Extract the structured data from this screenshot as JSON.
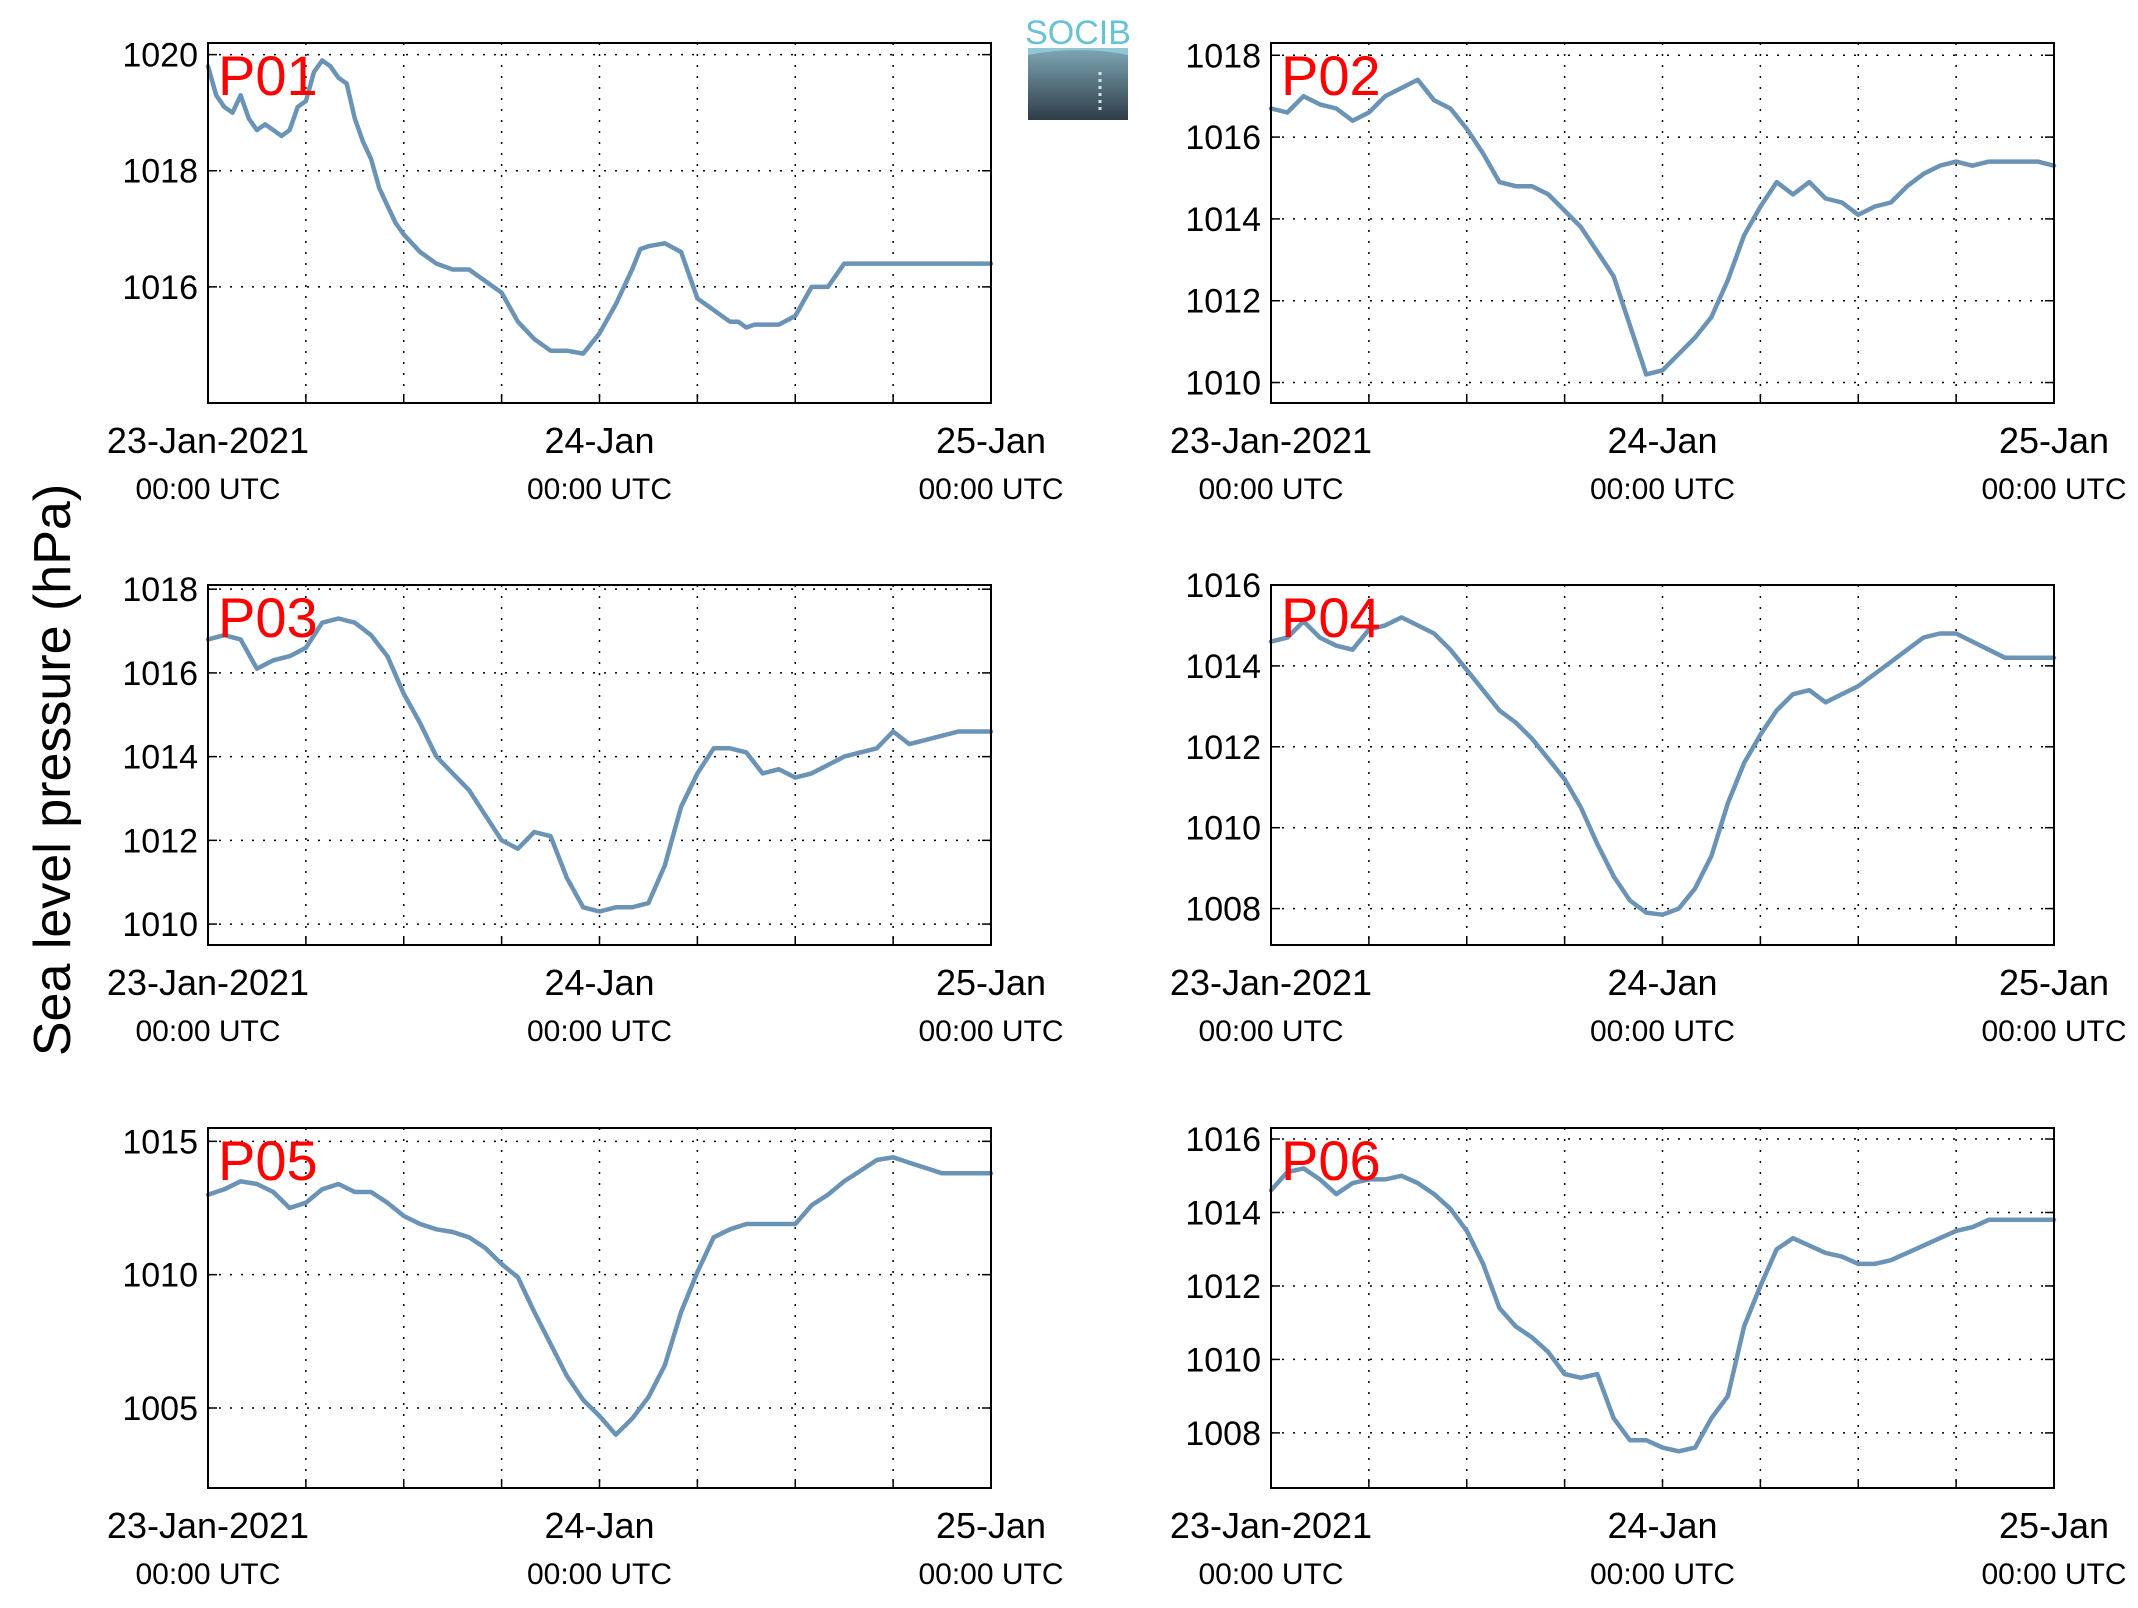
{
  "figure": {
    "ylabel": "Sea level pressure (hPa)",
    "logo_text": "SOCIB",
    "line_color": "#6a93b6",
    "panel_label_color": "#ff0000",
    "grid": "dotted"
  },
  "chart_data": [
    {
      "type": "line",
      "panel_label": "P01",
      "x_ticks": [
        {
          "x": 0,
          "line1": "23-Jan-2021",
          "line2": "00:00 UTC"
        },
        {
          "x": 24,
          "line1": "24-Jan",
          "line2": "00:00 UTC"
        },
        {
          "x": 48,
          "line1": "25-Jan",
          "line2": "00:00 UTC"
        }
      ],
      "xlim": [
        0,
        48
      ],
      "ylim": [
        1014,
        1020.2
      ],
      "yticks": [
        1016,
        1018,
        1020
      ],
      "x": [
        0,
        0.5,
        1,
        1.5,
        2,
        2.5,
        3,
        3.5,
        4,
        4.5,
        5,
        5.5,
        6,
        6.5,
        7,
        7.5,
        8,
        8.5,
        9,
        9.5,
        10,
        10.5,
        11,
        11.5,
        12,
        13,
        14,
        15,
        16,
        17,
        18,
        19,
        20,
        21,
        22,
        23,
        24,
        25,
        26,
        26.5,
        27,
        28,
        29,
        30,
        31,
        31.5,
        32,
        32.5,
        33,
        33.5,
        34,
        35,
        36,
        37,
        38,
        39,
        40,
        41,
        42,
        43,
        44,
        45,
        46,
        47,
        48
      ],
      "values": [
        1019.8,
        1019.3,
        1019.1,
        1019.0,
        1019.3,
        1018.9,
        1018.7,
        1018.8,
        1018.7,
        1018.6,
        1018.7,
        1019.1,
        1019.2,
        1019.7,
        1019.9,
        1019.8,
        1019.6,
        1019.5,
        1018.9,
        1018.5,
        1018.2,
        1017.7,
        1017.4,
        1017.1,
        1016.9,
        1016.6,
        1016.4,
        1016.3,
        1016.3,
        1016.1,
        1015.9,
        1015.4,
        1015.1,
        1014.9,
        1014.9,
        1014.85,
        1015.2,
        1015.7,
        1016.3,
        1016.65,
        1016.7,
        1016.75,
        1016.6,
        1015.8,
        1015.6,
        1015.5,
        1015.4,
        1015.4,
        1015.3,
        1015.35,
        1015.35,
        1015.35,
        1015.5,
        1016.0,
        1016.0,
        1016.4,
        1016.4,
        1016.4,
        1016.4,
        1016.4,
        1016.4,
        1016.4,
        1016.4,
        1016.4,
        1016.4
      ]
    },
    {
      "type": "line",
      "panel_label": "P02",
      "x_ticks": [
        {
          "x": 0,
          "line1": "23-Jan-2021",
          "line2": "00:00 UTC"
        },
        {
          "x": 24,
          "line1": "24-Jan",
          "line2": "00:00 UTC"
        },
        {
          "x": 48,
          "line1": "25-Jan",
          "line2": "00:00 UTC"
        }
      ],
      "xlim": [
        0,
        48
      ],
      "ylim": [
        1009.5,
        1018.3
      ],
      "yticks": [
        1010,
        1012,
        1014,
        1016,
        1018
      ],
      "x": [
        0,
        1,
        2,
        3,
        4,
        5,
        6,
        7,
        8,
        9,
        10,
        11,
        12,
        13,
        14,
        15,
        16,
        17,
        18,
        19,
        20,
        21,
        22,
        23,
        24,
        25,
        26,
        27,
        28,
        29,
        30,
        31,
        32,
        33,
        34,
        35,
        36,
        37,
        38,
        39,
        40,
        41,
        42,
        43,
        44,
        45,
        46,
        47,
        48
      ],
      "values": [
        1016.7,
        1016.6,
        1017.0,
        1016.8,
        1016.7,
        1016.4,
        1016.6,
        1017.0,
        1017.2,
        1017.4,
        1016.9,
        1016.7,
        1016.2,
        1015.6,
        1014.9,
        1014.8,
        1014.8,
        1014.6,
        1014.2,
        1013.8,
        1013.2,
        1012.6,
        1011.4,
        1010.2,
        1010.3,
        1010.7,
        1011.1,
        1011.6,
        1012.5,
        1013.6,
        1014.3,
        1014.9,
        1014.6,
        1014.9,
        1014.5,
        1014.4,
        1014.1,
        1014.3,
        1014.4,
        1014.8,
        1015.1,
        1015.3,
        1015.4,
        1015.3,
        1015.4,
        1015.4,
        1015.4,
        1015.4,
        1015.3
      ]
    },
    {
      "type": "line",
      "panel_label": "P03",
      "x_ticks": [
        {
          "x": 0,
          "line1": "23-Jan-2021",
          "line2": "00:00 UTC"
        },
        {
          "x": 24,
          "line1": "24-Jan",
          "line2": "00:00 UTC"
        },
        {
          "x": 48,
          "line1": "25-Jan",
          "line2": "00:00 UTC"
        }
      ],
      "xlim": [
        0,
        48
      ],
      "ylim": [
        1009.5,
        1018.1
      ],
      "yticks": [
        1010,
        1012,
        1014,
        1016,
        1018
      ],
      "x": [
        0,
        1,
        2,
        3,
        4,
        5,
        6,
        7,
        8,
        9,
        10,
        11,
        12,
        13,
        14,
        15,
        16,
        17,
        18,
        19,
        20,
        21,
        22,
        23,
        24,
        25,
        26,
        27,
        28,
        29,
        30,
        31,
        32,
        33,
        34,
        35,
        36,
        37,
        38,
        39,
        40,
        41,
        42,
        43,
        44,
        45,
        46,
        47,
        48
      ],
      "values": [
        1016.8,
        1016.9,
        1016.8,
        1016.1,
        1016.3,
        1016.4,
        1016.6,
        1017.2,
        1017.3,
        1017.2,
        1016.9,
        1016.4,
        1015.5,
        1014.8,
        1014.0,
        1013.6,
        1013.2,
        1012.6,
        1012.0,
        1011.8,
        1012.2,
        1012.1,
        1011.1,
        1010.4,
        1010.3,
        1010.4,
        1010.4,
        1010.5,
        1011.4,
        1012.8,
        1013.6,
        1014.2,
        1014.2,
        1014.1,
        1013.6,
        1013.7,
        1013.5,
        1013.6,
        1013.8,
        1014.0,
        1014.1,
        1014.2,
        1014.6,
        1014.3,
        1014.4,
        1014.5,
        1014.6,
        1014.6,
        1014.6
      ]
    },
    {
      "type": "line",
      "panel_label": "P04",
      "x_ticks": [
        {
          "x": 0,
          "line1": "23-Jan-2021",
          "line2": "00:00 UTC"
        },
        {
          "x": 24,
          "line1": "24-Jan",
          "line2": "00:00 UTC"
        },
        {
          "x": 48,
          "line1": "25-Jan",
          "line2": "00:00 UTC"
        }
      ],
      "xlim": [
        0,
        48
      ],
      "ylim": [
        1007.1,
        1016
      ],
      "yticks": [
        1008,
        1010,
        1012,
        1014,
        1016
      ],
      "x": [
        0,
        1,
        2,
        3,
        4,
        5,
        6,
        7,
        8,
        9,
        10,
        11,
        12,
        13,
        14,
        15,
        16,
        17,
        18,
        19,
        20,
        21,
        22,
        23,
        24,
        25,
        26,
        27,
        28,
        29,
        30,
        31,
        32,
        33,
        34,
        35,
        36,
        37,
        38,
        39,
        40,
        41,
        42,
        43,
        44,
        45,
        46,
        47,
        48
      ],
      "values": [
        1014.6,
        1014.7,
        1015.1,
        1014.7,
        1014.5,
        1014.4,
        1014.9,
        1015.0,
        1015.2,
        1015.0,
        1014.8,
        1014.4,
        1013.9,
        1013.4,
        1012.9,
        1012.6,
        1012.2,
        1011.7,
        1011.2,
        1010.5,
        1009.6,
        1008.8,
        1008.2,
        1007.9,
        1007.85,
        1008.0,
        1008.5,
        1009.3,
        1010.6,
        1011.6,
        1012.3,
        1012.9,
        1013.3,
        1013.4,
        1013.1,
        1013.3,
        1013.5,
        1013.8,
        1014.1,
        1014.4,
        1014.7,
        1014.8,
        1014.8,
        1014.6,
        1014.4,
        1014.2,
        1014.2,
        1014.2,
        1014.2
      ]
    },
    {
      "type": "line",
      "panel_label": "P05",
      "x_ticks": [
        {
          "x": 0,
          "line1": "23-Jan-2021",
          "line2": "00:00 UTC"
        },
        {
          "x": 24,
          "line1": "24-Jan",
          "line2": "00:00 UTC"
        },
        {
          "x": 48,
          "line1": "25-Jan",
          "line2": "00:00 UTC"
        }
      ],
      "xlim": [
        0,
        48
      ],
      "ylim": [
        1002,
        1015.5
      ],
      "yticks": [
        1005,
        1010,
        1015
      ],
      "x": [
        0,
        1,
        2,
        3,
        4,
        5,
        6,
        7,
        8,
        9,
        10,
        11,
        12,
        13,
        14,
        15,
        16,
        17,
        18,
        19,
        20,
        21,
        22,
        23,
        24,
        25,
        26,
        27,
        28,
        29,
        30,
        31,
        32,
        33,
        34,
        35,
        36,
        37,
        38,
        39,
        40,
        41,
        42,
        43,
        44,
        45,
        46,
        47,
        48
      ],
      "values": [
        1013.0,
        1013.2,
        1013.5,
        1013.4,
        1013.1,
        1012.5,
        1012.7,
        1013.2,
        1013.4,
        1013.1,
        1013.1,
        1012.7,
        1012.2,
        1011.9,
        1011.7,
        1011.6,
        1011.4,
        1011.0,
        1010.4,
        1009.9,
        1008.6,
        1007.4,
        1006.2,
        1005.3,
        1004.7,
        1004.0,
        1004.6,
        1005.4,
        1006.6,
        1008.6,
        1010.1,
        1011.4,
        1011.7,
        1011.9,
        1011.9,
        1011.9,
        1011.9,
        1012.6,
        1013.0,
        1013.5,
        1013.9,
        1014.3,
        1014.4,
        1014.2,
        1014.0,
        1013.8,
        1013.8,
        1013.8,
        1013.8
      ]
    },
    {
      "type": "line",
      "panel_label": "P06",
      "x_ticks": [
        {
          "x": 0,
          "line1": "23-Jan-2021",
          "line2": "00:00 UTC"
        },
        {
          "x": 24,
          "line1": "24-Jan",
          "line2": "00:00 UTC"
        },
        {
          "x": 48,
          "line1": "25-Jan",
          "line2": "00:00 UTC"
        }
      ],
      "xlim": [
        0,
        48
      ],
      "ylim": [
        1006.5,
        1016.3
      ],
      "yticks": [
        1008,
        1010,
        1012,
        1014,
        1016
      ],
      "x": [
        0,
        1,
        2,
        3,
        4,
        5,
        6,
        7,
        8,
        9,
        10,
        11,
        12,
        13,
        14,
        15,
        16,
        17,
        18,
        19,
        20,
        21,
        22,
        23,
        24,
        25,
        26,
        27,
        28,
        29,
        30,
        31,
        32,
        33,
        34,
        35,
        36,
        37,
        38,
        39,
        40,
        41,
        42,
        43,
        44,
        45,
        46,
        47,
        48
      ],
      "values": [
        1014.6,
        1015.1,
        1015.2,
        1014.9,
        1014.5,
        1014.8,
        1014.9,
        1014.9,
        1015.0,
        1014.8,
        1014.5,
        1014.1,
        1013.5,
        1012.6,
        1011.4,
        1010.9,
        1010.6,
        1010.2,
        1009.6,
        1009.5,
        1009.6,
        1008.4,
        1007.8,
        1007.8,
        1007.6,
        1007.5,
        1007.6,
        1008.4,
        1009.0,
        1010.9,
        1012.0,
        1013.0,
        1013.3,
        1013.1,
        1012.9,
        1012.8,
        1012.6,
        1012.6,
        1012.7,
        1012.9,
        1013.1,
        1013.3,
        1013.5,
        1013.6,
        1013.8,
        1013.8,
        1013.8,
        1013.8,
        1013.8
      ]
    }
  ]
}
